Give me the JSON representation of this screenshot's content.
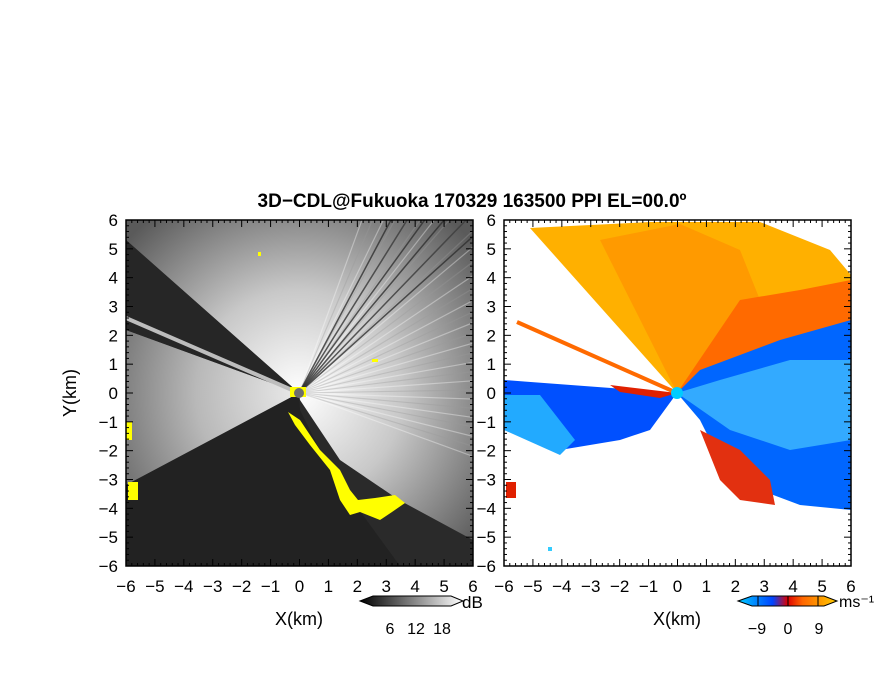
{
  "title": "3D−CDL@Fukuoka 170329 163500 PPI EL=00.0º",
  "chart_data": [
    {
      "type": "heatmap",
      "name": "reflectivity-ppi",
      "xlabel": "X(km)",
      "ylabel": "Y(km)",
      "xlim": [
        -6,
        6
      ],
      "ylim": [
        -6,
        6
      ],
      "xticks": [
        "−6",
        "−5",
        "−4",
        "−3",
        "−2",
        "−1",
        "0",
        "1",
        "2",
        "3",
        "4",
        "5",
        "6"
      ],
      "yticks": [
        "6",
        "5",
        "4",
        "3",
        "2",
        "1",
        "0",
        "−1",
        "−2",
        "−3",
        "−4",
        "−5",
        "−6"
      ],
      "colorbar": {
        "unit": "dB",
        "ticks": [
          "6",
          "12",
          "18"
        ],
        "min": 0,
        "max": 24
      },
      "colors": {
        "low": "#1a1a1a",
        "high": "#ffffff",
        "highlight": "#ffff00"
      }
    },
    {
      "type": "heatmap",
      "name": "doppler-velocity-ppi",
      "xlabel": "X(km)",
      "xlim": [
        -6,
        6
      ],
      "ylim": [
        -6,
        6
      ],
      "xticks": [
        "−6",
        "−5",
        "−4",
        "−3",
        "−2",
        "−1",
        "0",
        "1",
        "2",
        "3",
        "4",
        "5",
        "6"
      ],
      "yticks": [
        "6",
        "5",
        "4",
        "3",
        "2",
        "1",
        "0",
        "−1",
        "−2",
        "−3",
        "−4",
        "−5",
        "−6"
      ],
      "colorbar": {
        "unit": "ms⁻¹",
        "ticks": [
          "−9",
          "0",
          "9"
        ],
        "min": -12,
        "max": 12
      },
      "colors": {
        "neg_far": "#00ccff",
        "neg": "#0044ff",
        "pos": "#ff6600",
        "pos_far": "#ffcc00",
        "zero": "#e00000"
      }
    }
  ]
}
